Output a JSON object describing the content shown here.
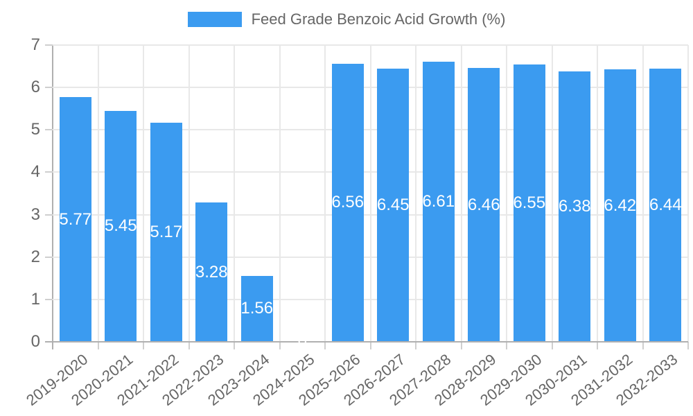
{
  "chart_data": {
    "type": "bar",
    "title": "Feed Grade Benzoic Acid Growth (%)",
    "legend_position": "top",
    "grid": true,
    "categories": [
      "2019-2020",
      "2020-2021",
      "2021-2022",
      "2022-2023",
      "2023-2024",
      "2024-2025",
      "2025-2026",
      "2026-2027",
      "2027-2028",
      "2028-2029",
      "2029-2030",
      "2030-2031",
      "2031-2032",
      "2032-2033"
    ],
    "series": [
      {
        "name": "Feed Grade Benzoic Acid Growth (%)",
        "values": [
          5.77,
          5.45,
          5.17,
          3.28,
          1.56,
          0,
          6.56,
          6.45,
          6.61,
          6.46,
          6.55,
          6.38,
          6.42,
          6.44
        ],
        "labels": [
          "5.77",
          "5.45",
          "5.17",
          "3.28",
          "1.56",
          "0",
          "6.56",
          "6.45",
          "6.61",
          "6.46",
          "6.55",
          "6.38",
          "6.42",
          "6.44"
        ],
        "color": "#3B9BF0"
      }
    ],
    "xlabel": "",
    "ylabel": "",
    "ylim": [
      0,
      7
    ],
    "yticks": [
      0,
      1,
      2,
      3,
      4,
      5,
      6,
      7
    ],
    "ytick_labels": [
      "0",
      "1",
      "2",
      "3",
      "4",
      "5",
      "6",
      "7"
    ],
    "colors": {
      "bar": "#3B9BF0",
      "bar_label": "#ffffff",
      "axis_text": "#666666",
      "gridline": "#e8e8e8",
      "tick": "#cfcfcf",
      "axis_line": "#b0b0b0"
    }
  }
}
